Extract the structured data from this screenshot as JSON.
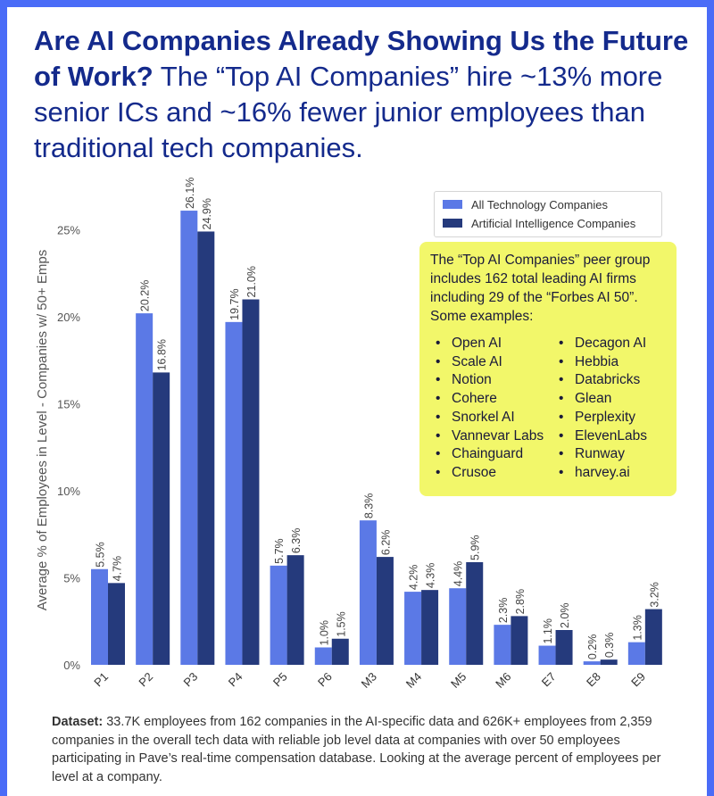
{
  "title": {
    "bold": "Are AI Companies Already Showing Us the Future of Work?",
    "rest": " The “Top AI Companies” hire ~13% more senior ICs and ~16% fewer junior employees than traditional tech companies."
  },
  "colors": {
    "all_tech": "#5b79e6",
    "ai": "#253a7c",
    "callout_bg": "#f2f76a",
    "frame": "#4a6cf7"
  },
  "legend": {
    "all_tech": "All Technology Companies",
    "ai": "Artificial Intelligence Companies"
  },
  "callout": {
    "intro": "The “Top AI Companies” peer group includes 162 total leading AI firms including 29 of the “Forbes AI 50”. Some examples:",
    "col1": [
      "Open AI",
      "Scale AI",
      "Notion",
      "Cohere",
      "Snorkel AI",
      "Vannevar Labs",
      "Chainguard",
      "Crusoe"
    ],
    "col2": [
      "Decagon AI",
      "Hebbia",
      "Databricks",
      "Glean",
      "Perplexity",
      "ElevenLabs",
      "Runway",
      "harvey.ai"
    ]
  },
  "footnote": {
    "label": "Dataset:",
    "text": " 33.7K employees from 162 companies in the AI-specific data and 626K+ employees from 2,359 companies in the overall tech data with reliable job level data at companies with over 50 employees participating in Pave’s real-time compensation database. Looking at the average percent of employees per level at a company."
  },
  "chart_data": {
    "type": "bar",
    "title": "",
    "xlabel": "",
    "ylabel": "Average % of Employees in Level - Companies w/ 50+ Emps",
    "ylim": [
      0,
      28
    ],
    "yticks": [
      0,
      5,
      10,
      15,
      20,
      25
    ],
    "ytick_labels": [
      "0%",
      "5%",
      "10%",
      "15%",
      "20%",
      "25%"
    ],
    "categories": [
      "P1",
      "P2",
      "P3",
      "P4",
      "P5",
      "P6",
      "M3",
      "M4",
      "M5",
      "M6",
      "E7",
      "E8",
      "E9"
    ],
    "series": [
      {
        "name": "All Technology Companies",
        "values": [
          5.5,
          20.2,
          26.1,
          19.7,
          5.7,
          1.0,
          8.3,
          4.2,
          4.4,
          2.3,
          1.1,
          0.2,
          1.3
        ],
        "labels": [
          "5.5%",
          "20.2%",
          "26.1%",
          "19.7%",
          "5.7%",
          "1.0%",
          "8.3%",
          "4.2%",
          "4.4%",
          "2.3%",
          "1.1%",
          "0.2%",
          "1.3%"
        ]
      },
      {
        "name": "Artificial Intelligence Companies",
        "values": [
          4.7,
          16.8,
          24.9,
          21.0,
          6.3,
          1.5,
          6.2,
          4.3,
          5.9,
          2.8,
          2.0,
          0.3,
          3.2
        ],
        "labels": [
          "4.7%",
          "16.8%",
          "24.9%",
          "21.0%",
          "6.3%",
          "1.5%",
          "6.2%",
          "4.3%",
          "5.9%",
          "2.8%",
          "2.0%",
          "0.3%",
          "3.2%"
        ]
      }
    ],
    "legend_position": "top-right"
  }
}
